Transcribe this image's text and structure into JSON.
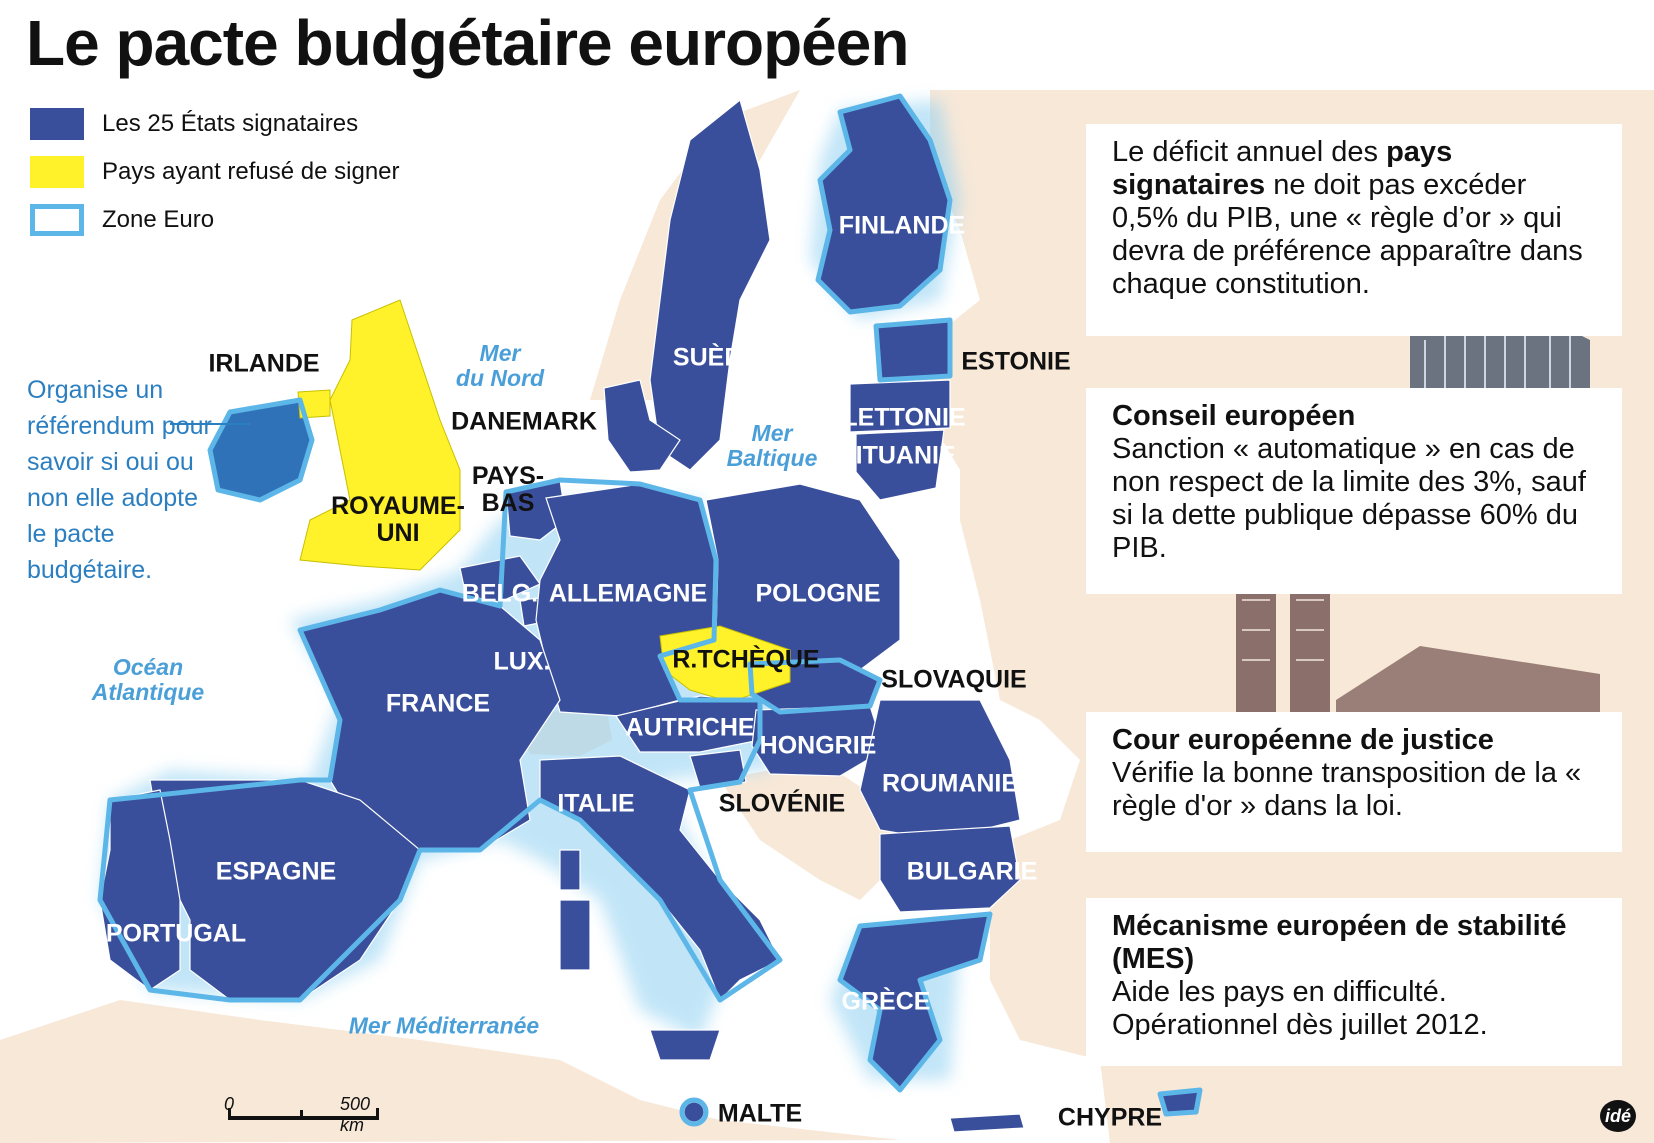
{
  "title": "Le pacte budgétaire européen",
  "colors": {
    "signatory": "#3a4f9c",
    "refused": "#fff12a",
    "euro_zone_outline": "#5db6e8",
    "land_other": "#f7e8d8",
    "sea": "#ffffff",
    "ireland": "#2f72b8"
  },
  "legend": [
    {
      "label": "Les 25 États signataires",
      "swatch": "signatory"
    },
    {
      "label": "Pays ayant refusé de signer",
      "swatch": "refused"
    },
    {
      "label": "Zone Euro",
      "swatch": "euro-zone-outline"
    }
  ],
  "ireland_note": "Organise un référendum pour savoir si oui ou non elle adopte le pacte budgétaire.",
  "countries": {
    "finlande": "FINLANDE",
    "suede": "SUÈDE",
    "estonie": "ESTONIE",
    "lettonie": "LETTONIE",
    "lituanie": "LITUANIE",
    "irlande": "IRLANDE",
    "danemark": "DANEMARK",
    "pays_bas": "PAYS-\nBAS",
    "royaume_uni": "ROYAUME-\nUNI",
    "belg": "BELG.",
    "allemagne": "ALLEMAGNE",
    "pologne": "POLOGNE",
    "lux": "LUX.",
    "rtcheque": "R.TCHÈQUE",
    "slovaquie": "SLOVAQUIE",
    "france": "FRANCE",
    "autriche": "AUTRICHE",
    "hongrie": "HONGRIE",
    "roumanie": "ROUMANIE",
    "italie": "ITALIE",
    "slovenie": "SLOVÉNIE",
    "espagne": "ESPAGNE",
    "bulgarie": "BULGARIE",
    "portugal": "PORTUGAL",
    "grece": "GRÈCE",
    "malte": "MALTE",
    "chypre": "CHYPRE"
  },
  "seas": {
    "mer_du_nord": "Mer\ndu Nord",
    "mer_baltique": "Mer\nBaltique",
    "ocean_atlantique": "Océan\nAtlantique",
    "mer_mediterranee": "Mer Méditerranée"
  },
  "panels": {
    "golden_rule": {
      "text_1": "Le déficit annuel des ",
      "bold_1": "pays signataires",
      "text_2": " ne doit pas excéder 0,5% du PIB, une « règle d’or » qui devra de préférence apparaître dans chaque constitution."
    },
    "council": {
      "title": "Conseil européen",
      "body": "Sanction « automatique » en cas de non respect de la limite des 3%, sauf si la dette publique dépasse 60% du PIB."
    },
    "court": {
      "title": "Cour européenne de justice",
      "body": "Vérifie la bonne transposition de la « règle d'or » dans la loi."
    },
    "mes": {
      "title": "Mécanisme européen de stabilité (MES)",
      "body": "Aide les pays en difficulté. Opérationnel dès juillet 2012."
    }
  },
  "scale": {
    "zero": "0",
    "distance": "500 km"
  },
  "logo": "idé"
}
